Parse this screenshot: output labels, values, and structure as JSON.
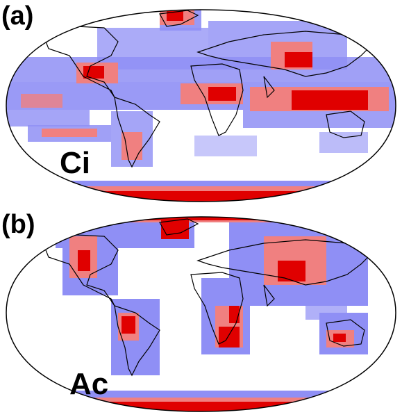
{
  "figure": {
    "colors": {
      "low": "#8f8ff5",
      "mid": "#f08080",
      "high": "#e00000",
      "coast": "#000000",
      "frame": "#000000"
    },
    "panels": [
      {
        "id": "a",
        "panel_label": "(a)",
        "cloud_type": "Ci",
        "description_fields": [
          "tropics-band",
          "antarctica",
          "greenland"
        ]
      },
      {
        "id": "b",
        "panel_label": "(b)",
        "cloud_type": "Ac",
        "description_fields": [
          "continents",
          "antarctica",
          "greenland"
        ]
      }
    ]
  }
}
